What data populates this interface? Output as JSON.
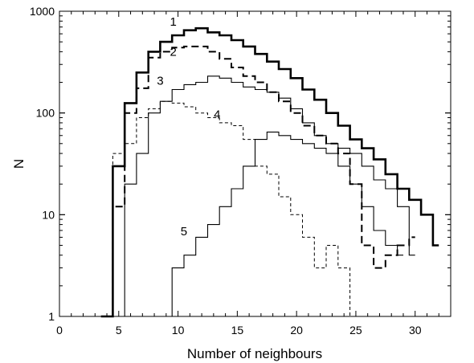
{
  "chart_data": {
    "type": "line",
    "xlabel": "Number of neighbours",
    "ylabel": "N",
    "x_scale": "linear",
    "y_scale": "log",
    "xlim": [
      0,
      33
    ],
    "ylim": [
      1,
      1000
    ],
    "x_ticks": [
      "0",
      "5",
      "10",
      "15",
      "20",
      "25",
      "30"
    ],
    "y_ticks": [
      "1",
      "10",
      "100",
      "1000"
    ],
    "grid": false,
    "series": [
      {
        "name": "1",
        "style": "thick-solid",
        "points": [
          [
            3,
            1
          ],
          [
            4,
            30
          ],
          [
            5,
            125
          ],
          [
            6,
            250
          ],
          [
            7,
            400
          ],
          [
            8,
            500
          ],
          [
            9,
            580
          ],
          [
            10,
            650
          ],
          [
            11,
            680
          ],
          [
            12,
            620
          ],
          [
            13,
            580
          ],
          [
            14,
            520
          ],
          [
            15,
            450
          ],
          [
            16,
            380
          ],
          [
            17,
            320
          ],
          [
            18,
            270
          ],
          [
            19,
            220
          ],
          [
            20,
            170
          ],
          [
            21,
            135
          ],
          [
            22,
            100
          ],
          [
            23,
            75
          ],
          [
            24,
            55
          ],
          [
            25,
            45
          ],
          [
            26,
            35
          ],
          [
            27,
            25
          ],
          [
            28,
            18
          ],
          [
            29,
            14
          ],
          [
            30,
            10
          ],
          [
            31,
            5
          ]
        ]
      },
      {
        "name": "2",
        "style": "thick-dashed",
        "points": [
          [
            4,
            12
          ],
          [
            5,
            100
          ],
          [
            6,
            175
          ],
          [
            7,
            350
          ],
          [
            8,
            400
          ],
          [
            9,
            440
          ],
          [
            10,
            450
          ],
          [
            11,
            450
          ],
          [
            12,
            400
          ],
          [
            13,
            340
          ],
          [
            14,
            280
          ],
          [
            15,
            230
          ],
          [
            16,
            200
          ],
          [
            17,
            160
          ],
          [
            18,
            130
          ],
          [
            19,
            100
          ],
          [
            20,
            75
          ],
          [
            21,
            60
          ],
          [
            22,
            50
          ],
          [
            23,
            40
          ],
          [
            24,
            20
          ],
          [
            25,
            5
          ],
          [
            26,
            3
          ],
          [
            27,
            4
          ],
          [
            28,
            5
          ],
          [
            29,
            6
          ]
        ]
      },
      {
        "name": "3",
        "style": "thin-solid",
        "points": [
          [
            4,
            1
          ],
          [
            5,
            20
          ],
          [
            6,
            40
          ],
          [
            7,
            100
          ],
          [
            8,
            130
          ],
          [
            9,
            170
          ],
          [
            10,
            190
          ],
          [
            11,
            200
          ],
          [
            12,
            230
          ],
          [
            13,
            220
          ],
          [
            14,
            200
          ],
          [
            15,
            180
          ],
          [
            16,
            170
          ],
          [
            17,
            160
          ],
          [
            18,
            140
          ],
          [
            19,
            110
          ],
          [
            20,
            80
          ],
          [
            21,
            60
          ],
          [
            22,
            50
          ],
          [
            23,
            45
          ],
          [
            24,
            40
          ],
          [
            25,
            30
          ],
          [
            26,
            22
          ],
          [
            27,
            18
          ],
          [
            28,
            12
          ],
          [
            29,
            4
          ]
        ]
      },
      {
        "name": "4",
        "style": "thin-dashed",
        "points": [
          [
            4,
            40
          ],
          [
            5,
            50
          ],
          [
            6,
            90
          ],
          [
            7,
            110
          ],
          [
            8,
            130
          ],
          [
            9,
            125
          ],
          [
            10,
            115
          ],
          [
            11,
            100
          ],
          [
            12,
            90
          ],
          [
            13,
            80
          ],
          [
            14,
            75
          ],
          [
            15,
            55
          ],
          [
            16,
            30
          ],
          [
            17,
            25
          ],
          [
            18,
            15
          ],
          [
            19,
            10
          ],
          [
            20,
            6
          ],
          [
            21,
            3
          ],
          [
            22,
            5
          ],
          [
            23,
            3
          ],
          [
            24,
            1
          ]
        ]
      },
      {
        "name": "5",
        "style": "thin-solid",
        "points": [
          [
            8,
            1
          ],
          [
            9,
            3
          ],
          [
            10,
            4
          ],
          [
            11,
            6
          ],
          [
            12,
            8
          ],
          [
            13,
            12
          ],
          [
            14,
            18
          ],
          [
            15,
            30
          ],
          [
            16,
            55
          ],
          [
            17,
            65
          ],
          [
            18,
            60
          ],
          [
            19,
            55
          ],
          [
            20,
            50
          ],
          [
            21,
            45
          ],
          [
            22,
            40
          ],
          [
            23,
            30
          ],
          [
            24,
            20
          ],
          [
            25,
            12
          ],
          [
            26,
            7
          ],
          [
            27,
            5
          ],
          [
            28,
            4
          ]
        ]
      }
    ]
  }
}
